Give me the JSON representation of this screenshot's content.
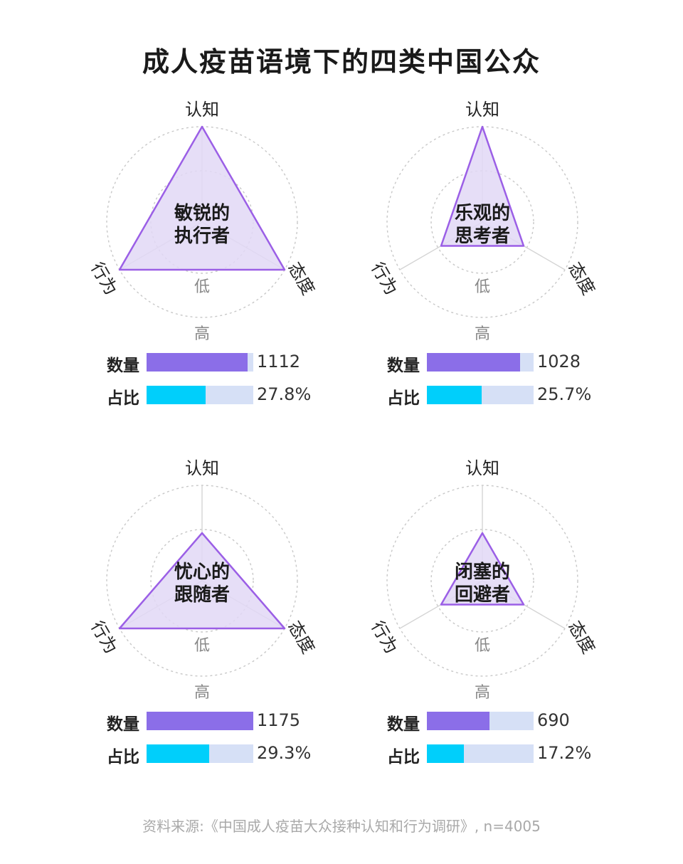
{
  "title": "成人疫苗语境下的四类中国公众",
  "source": "资料来源:《中国成人疫苗大众接种认知和行为调研》, n=4005",
  "colors": {
    "count_bar": "#8b6ee8",
    "share_bar": "#00cffb",
    "track": "#d6e0f6",
    "triangle_fill": "#e2d8f6",
    "triangle_stroke": "#9b5fe6"
  },
  "axis_labels": {
    "top": "认知",
    "left": "行为",
    "right": "态度",
    "low": "低",
    "high": "高"
  },
  "bar_labels": {
    "count": "数量",
    "share": "占比"
  },
  "chart_data": {
    "type": "radar",
    "axes": [
      "认知",
      "态度",
      "行为"
    ],
    "scale_levels": [
      "低",
      "高"
    ],
    "count_max": 1175,
    "groups": [
      {
        "name": "敏锐的执行者",
        "name_line1": "敏锐的",
        "name_line2": "执行者",
        "values": {
          "认知": "高",
          "态度": "高",
          "行为": "高"
        },
        "levels": [
          1.0,
          1.0,
          1.0
        ],
        "count": 1112,
        "count_text": "1112",
        "share": 27.8,
        "share_text": "27.8%"
      },
      {
        "name": "乐观的思考者",
        "name_line1": "乐观的",
        "name_line2": "思考者",
        "values": {
          "认知": "高",
          "态度": "低",
          "行为": "低"
        },
        "levels": [
          1.0,
          0.5,
          0.5
        ],
        "count": 1028,
        "count_text": "1028",
        "share": 25.7,
        "share_text": "25.7%"
      },
      {
        "name": "忧心的跟随者",
        "name_line1": "忧心的",
        "name_line2": "跟随者",
        "values": {
          "认知": "低",
          "态度": "高",
          "行为": "高"
        },
        "levels": [
          0.5,
          1.0,
          1.0
        ],
        "count": 1175,
        "count_text": "1175",
        "share": 29.3,
        "share_text": "29.3%"
      },
      {
        "name": "闭塞的回避者",
        "name_line1": "闭塞的",
        "name_line2": "回避者",
        "values": {
          "认知": "低",
          "态度": "低",
          "行为": "低"
        },
        "levels": [
          0.5,
          0.5,
          0.5
        ],
        "count": 690,
        "count_text": "690",
        "share": 17.2,
        "share_text": "17.2%"
      }
    ]
  }
}
